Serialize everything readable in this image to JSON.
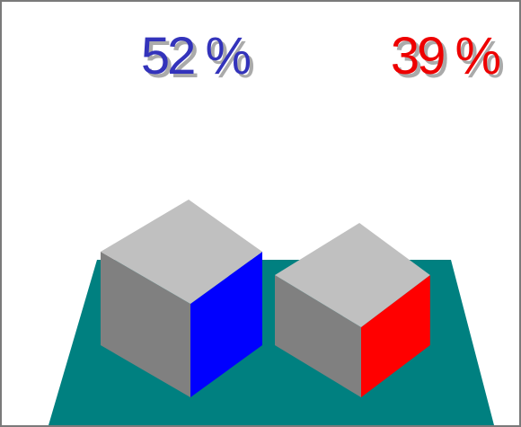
{
  "chart_data": {
    "type": "bar",
    "style": "3d-isometric-boxes",
    "platform_color": "#008080",
    "series": [
      {
        "value": 52,
        "label": "52 %",
        "color": "#0000ff",
        "label_color": "#3333bb"
      },
      {
        "value": 39,
        "label": "39 %",
        "color": "#ff0000",
        "label_color": "#ee0000"
      }
    ]
  }
}
